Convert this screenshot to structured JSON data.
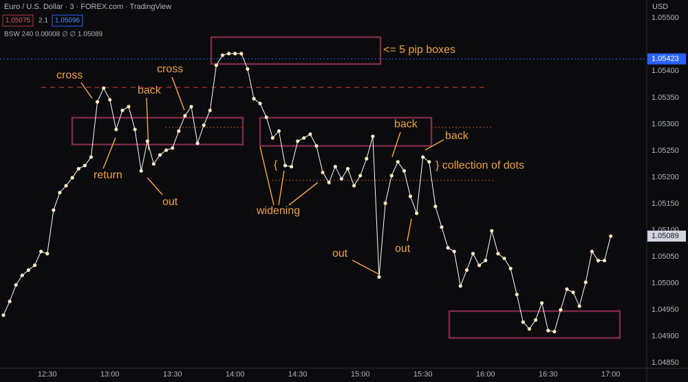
{
  "chart_data": {
    "type": "line",
    "title": "Euro / U.S. Dollar · 3 · FOREX.com · TradingView",
    "ohlc_tags": [
      "1.05075",
      "2.1",
      "1.05096"
    ],
    "indicator": "BSW 240 0.00008 ∅ ∅ 1.05089",
    "currency": "USD",
    "annotations": [
      "cross",
      "back",
      "cross",
      "return",
      "out",
      "<= 5 pip boxes",
      "back",
      "back",
      "} collection  of dots",
      "widening",
      "out",
      "out",
      "{"
    ],
    "categories": [
      null,
      null,
      null,
      null,
      null,
      null,
      null,
      "12:30",
      null,
      null,
      null,
      null,
      null,
      null,
      null,
      null,
      null,
      "13:00",
      null,
      null,
      null,
      null,
      null,
      null,
      null,
      null,
      null,
      "13:30",
      null,
      null,
      null,
      null,
      null,
      null,
      null,
      null,
      null,
      "14:00",
      null,
      null,
      null,
      null,
      null,
      null,
      null,
      null,
      null,
      "14:30",
      null,
      null,
      null,
      null,
      null,
      null,
      null,
      null,
      null,
      "15:00",
      null,
      null,
      null,
      null,
      null,
      null,
      null,
      null,
      null,
      "15:30",
      null,
      null,
      null,
      null,
      null,
      null,
      null,
      null,
      null,
      "16:00",
      null,
      null,
      null,
      null,
      null,
      null,
      null,
      null,
      null,
      "16:30",
      null,
      null,
      null,
      null,
      null,
      null,
      null,
      null,
      null,
      "17:00"
    ],
    "series": [
      {
        "name": "EURUSD",
        "color": "#ffffff",
        "marker_color": "#fde9c4",
        "values": [
          1.0494,
          1.04966,
          1.04997,
          1.05015,
          1.05025,
          1.05034,
          1.0506,
          1.05056,
          1.05138,
          1.05171,
          1.05184,
          1.05199,
          1.05216,
          1.05222,
          1.05238,
          1.05342,
          1.05368,
          1.05346,
          1.0529,
          1.05326,
          1.05333,
          1.0529,
          1.05212,
          1.05268,
          1.05225,
          1.05242,
          1.05251,
          1.05255,
          1.05287,
          1.05316,
          1.05333,
          1.05264,
          1.05298,
          1.05326,
          1.05411,
          1.0543,
          1.05433,
          1.05433,
          1.05433,
          1.05404,
          1.05348,
          1.05339,
          1.05313,
          1.05274,
          1.05287,
          1.05222,
          1.0522,
          1.05268,
          1.05274,
          1.05281,
          1.05259,
          1.05209,
          1.0519,
          1.0522,
          1.05197,
          1.05216,
          1.05184,
          1.05203,
          1.05235,
          1.05277,
          1.05012,
          1.05151,
          1.05203,
          1.05229,
          1.05212,
          1.05164,
          1.05132,
          1.05238,
          1.05229,
          1.05145,
          1.05106,
          1.05067,
          1.0506,
          1.04995,
          1.05025,
          1.05056,
          1.05034,
          1.05043,
          1.05099,
          1.05056,
          1.05047,
          1.05028,
          1.04979,
          1.04927,
          1.04914,
          1.04931,
          1.04963,
          1.04911,
          1.04909,
          1.0495,
          1.04989,
          1.04983,
          1.04957,
          1.05002,
          1.0506,
          1.05043,
          1.05043,
          1.05089
        ]
      }
    ],
    "ylim": [
      1.0484,
      1.05534
    ],
    "yticks": [
      {
        "value": 1.055,
        "label": "1.05500"
      },
      {
        "value": 1.054,
        "label": "1.05400"
      },
      {
        "value": 1.0535,
        "label": "1.05350"
      },
      {
        "value": 1.053,
        "label": "1.05300"
      },
      {
        "value": 1.0525,
        "label": "1.05250"
      },
      {
        "value": 1.052,
        "label": "1.05200"
      },
      {
        "value": 1.0515,
        "label": "1.05150"
      },
      {
        "value": 1.051,
        "label": "1.05100"
      },
      {
        "value": 1.0505,
        "label": "1.05050"
      },
      {
        "value": 1.05,
        "label": "1.05000"
      },
      {
        "value": 1.0495,
        "label": "1.04950"
      },
      {
        "value": 1.049,
        "label": "1.04900"
      },
      {
        "value": 1.0485,
        "label": "1.04850"
      }
    ],
    "price_labels": [
      1.05423,
      1.05089
    ]
  }
}
